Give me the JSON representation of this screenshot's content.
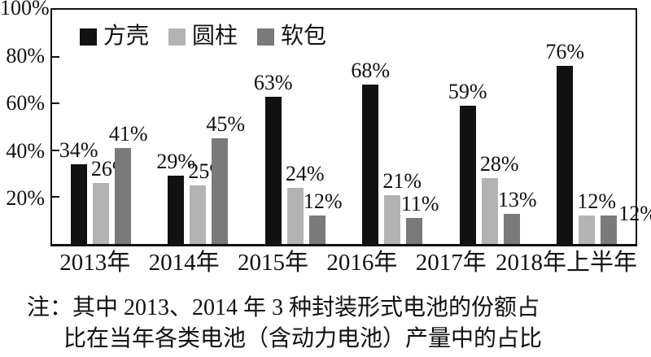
{
  "chart_data": {
    "type": "bar",
    "title": "",
    "xlabel": "",
    "ylabel": "",
    "categories": [
      "2013年",
      "2014年",
      "2015年",
      "2016年",
      "2017年",
      "2018年上半年"
    ],
    "series": [
      {
        "name": "方壳",
        "key": "prismatic",
        "color": "#111111",
        "values": [
          34,
          29,
          63,
          68,
          59,
          76
        ]
      },
      {
        "name": "圆柱",
        "key": "cylindrical",
        "color": "#b3b3b3",
        "values": [
          26,
          25,
          24,
          21,
          28,
          12
        ]
      },
      {
        "name": "软包",
        "key": "pouch",
        "color": "#7a7a7a",
        "values": [
          41,
          45,
          12,
          11,
          13,
          12
        ]
      }
    ],
    "value_label_format": "{v}%",
    "ylim": [
      0,
      100
    ],
    "yticks": [
      {
        "value": 100,
        "label": "100%"
      },
      {
        "value": 80,
        "label": "80%"
      },
      {
        "value": 60,
        "label": "60%"
      },
      {
        "value": 40,
        "label": "40%"
      },
      {
        "value": 20,
        "label": "20%"
      }
    ],
    "grid": false,
    "legend_position": "top-left-inside"
  },
  "note": {
    "line1": "注：其中 2013、2014 年 3 种封装形式电池的份额占",
    "line2": "比在当年各类电池（含动力电池）产量中的占比"
  },
  "colors": {
    "axis": "#111111",
    "background": "#ffffff",
    "text": "#111111"
  }
}
